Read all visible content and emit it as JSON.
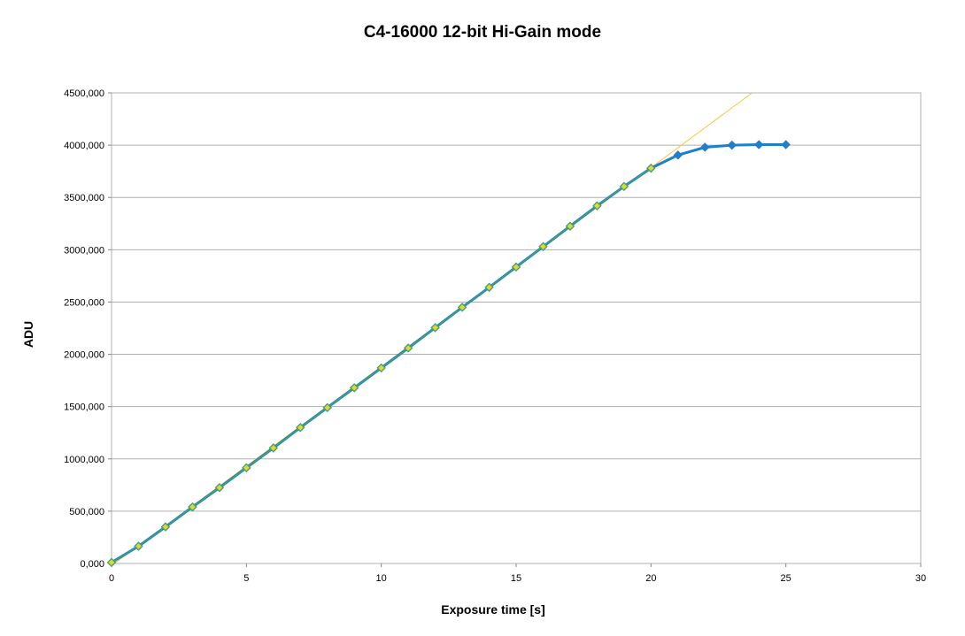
{
  "chart_data": {
    "type": "line",
    "title": "C4-16000 12-bit Hi-Gain mode",
    "xlabel": "Exposure time [s]",
    "ylabel": "ADU",
    "xlim": [
      0,
      30
    ],
    "ylim": [
      0,
      4500000
    ],
    "x_ticks": [
      0,
      5,
      10,
      15,
      20,
      25,
      30
    ],
    "x_tick_labels": [
      "0",
      "5",
      "10",
      "15",
      "20",
      "25",
      "30"
    ],
    "y_ticks": [
      0,
      500000,
      1000000,
      1500000,
      2000000,
      2500000,
      3000000,
      3500000,
      4000000,
      4500000
    ],
    "y_tick_labels": [
      "0,000",
      "500,000",
      "1000,000",
      "1500,000",
      "2000,000",
      "2500,000",
      "3000,000",
      "3500,000",
      "4000,000",
      "4500,000"
    ],
    "grid": "horizontal",
    "legend": "none",
    "series": [
      {
        "role": "measured",
        "color": "#1f7fc9",
        "marker": "diamond",
        "x": [
          0,
          1,
          2,
          3,
          4,
          5,
          6,
          7,
          8,
          9,
          10,
          11,
          12,
          13,
          14,
          15,
          16,
          17,
          18,
          19,
          20,
          21,
          22,
          23,
          24,
          25
        ],
        "y": [
          10000,
          165000,
          350000,
          540000,
          725000,
          915000,
          1105000,
          1300000,
          1490000,
          1680000,
          1870000,
          2060000,
          2255000,
          2450000,
          2640000,
          2835000,
          3030000,
          3225000,
          3420000,
          3605000,
          3780000,
          3905000,
          3980000,
          4000000,
          4005000,
          4005000
        ]
      },
      {
        "role": "linear-fit",
        "color": "#4caf50",
        "marker": "diamond",
        "marker_fill": "#e8d23a",
        "x": [
          0,
          1,
          2,
          3,
          4,
          5,
          6,
          7,
          8,
          9,
          10,
          11,
          12,
          13,
          14,
          15,
          16,
          17,
          18,
          19,
          20
        ],
        "y": [
          10000,
          165000,
          350000,
          540000,
          725000,
          915000,
          1105000,
          1300000,
          1490000,
          1680000,
          1870000,
          2060000,
          2255000,
          2450000,
          2640000,
          2835000,
          3030000,
          3225000,
          3420000,
          3605000,
          3780000
        ]
      },
      {
        "role": "extrapolation",
        "color": "#f5c842",
        "marker": "none",
        "x": [
          0,
          23.75
        ],
        "y": [
          -20000,
          4500000
        ]
      }
    ]
  }
}
